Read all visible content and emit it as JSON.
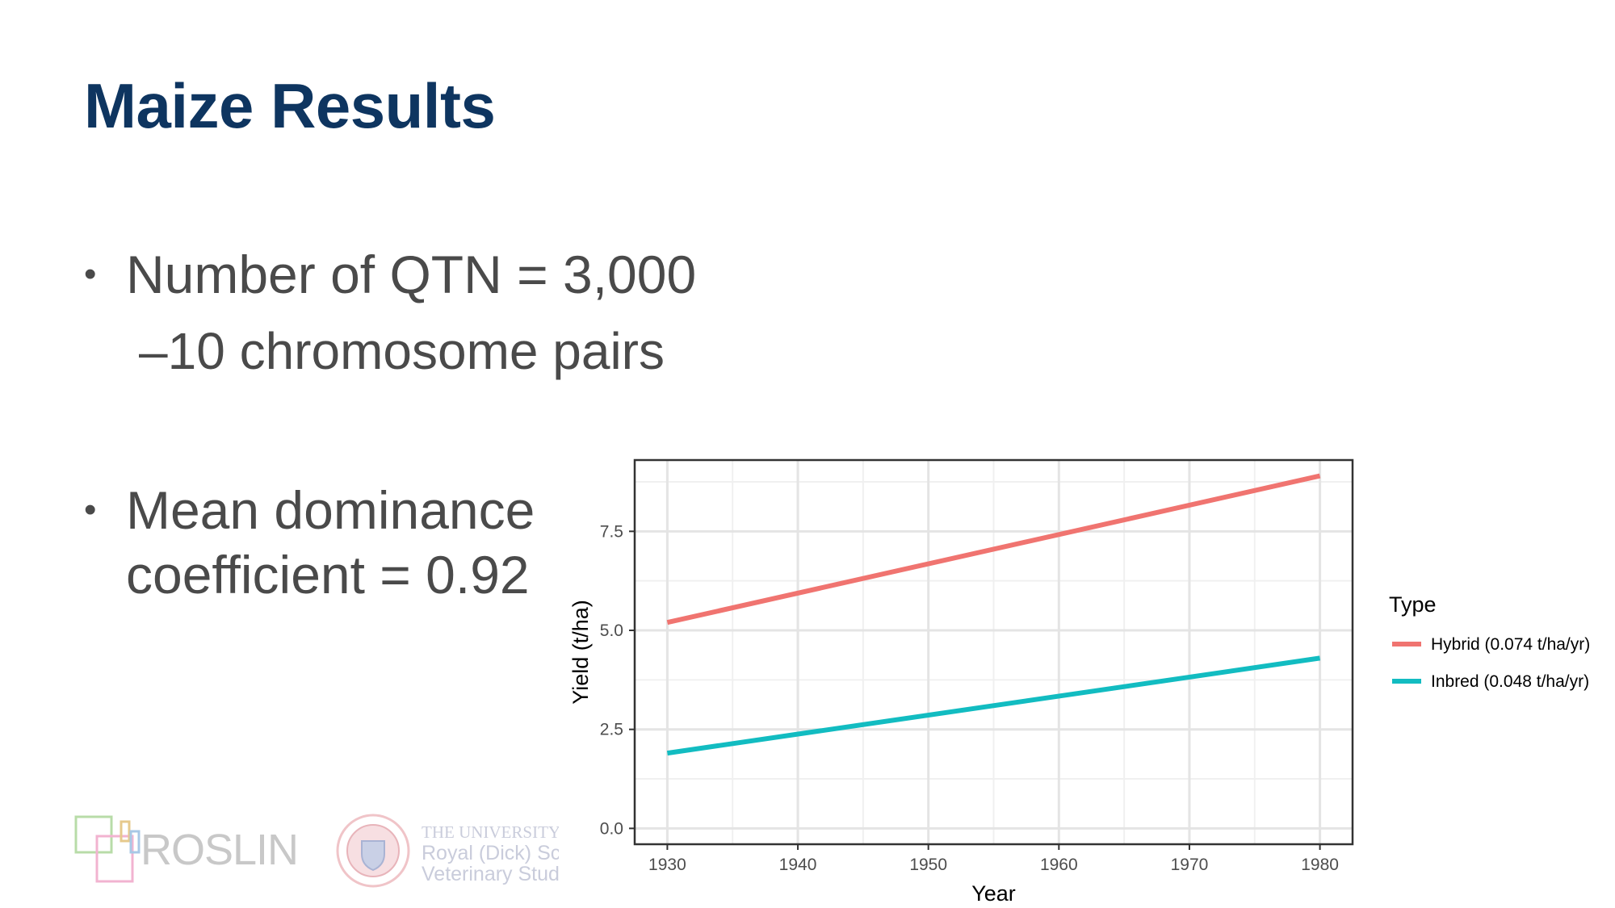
{
  "slide": {
    "title": "Maize Results",
    "bullets": [
      {
        "text": "Number of QTN = 3,000",
        "sub": "–10 chromosome pairs"
      },
      {
        "line1": "Mean dominance",
        "line2": "coefficient = 0.92"
      }
    ]
  },
  "logos": {
    "roslin": "ROSLIN",
    "university_lines": [
      "THE UNIVERSITY",
      "Royal (Dick) Sc",
      "Veterinary Stud"
    ]
  },
  "colors": {
    "title": "#0e3560",
    "body_text": "#4a4a4a",
    "hybrid": "#f07470",
    "inbred": "#12bcc1"
  },
  "chart_data": {
    "type": "line",
    "xlabel": "Year",
    "ylabel": "Yield (t/ha)",
    "xlim": [
      1927.5,
      1982.5
    ],
    "ylim": [
      -0.4,
      9.3
    ],
    "x_ticks": [
      1930,
      1940,
      1950,
      1960,
      1970,
      1980
    ],
    "y_ticks": [
      0.0,
      2.5,
      5.0,
      7.5
    ],
    "y_tick_labels": [
      "0.0",
      "2.5",
      "5.0",
      "7.5"
    ],
    "grid": true,
    "legend_title": "Type",
    "legend_position": "right",
    "series": [
      {
        "name": "Hybrid (0.074 t/ha/yr)",
        "color": "#f07470",
        "x": [
          1930,
          1980
        ],
        "y": [
          5.2,
          8.9
        ]
      },
      {
        "name": "Inbred (0.048 t/ha/yr)",
        "color": "#12bcc1",
        "x": [
          1930,
          1980
        ],
        "y": [
          1.9,
          4.3
        ]
      }
    ]
  }
}
